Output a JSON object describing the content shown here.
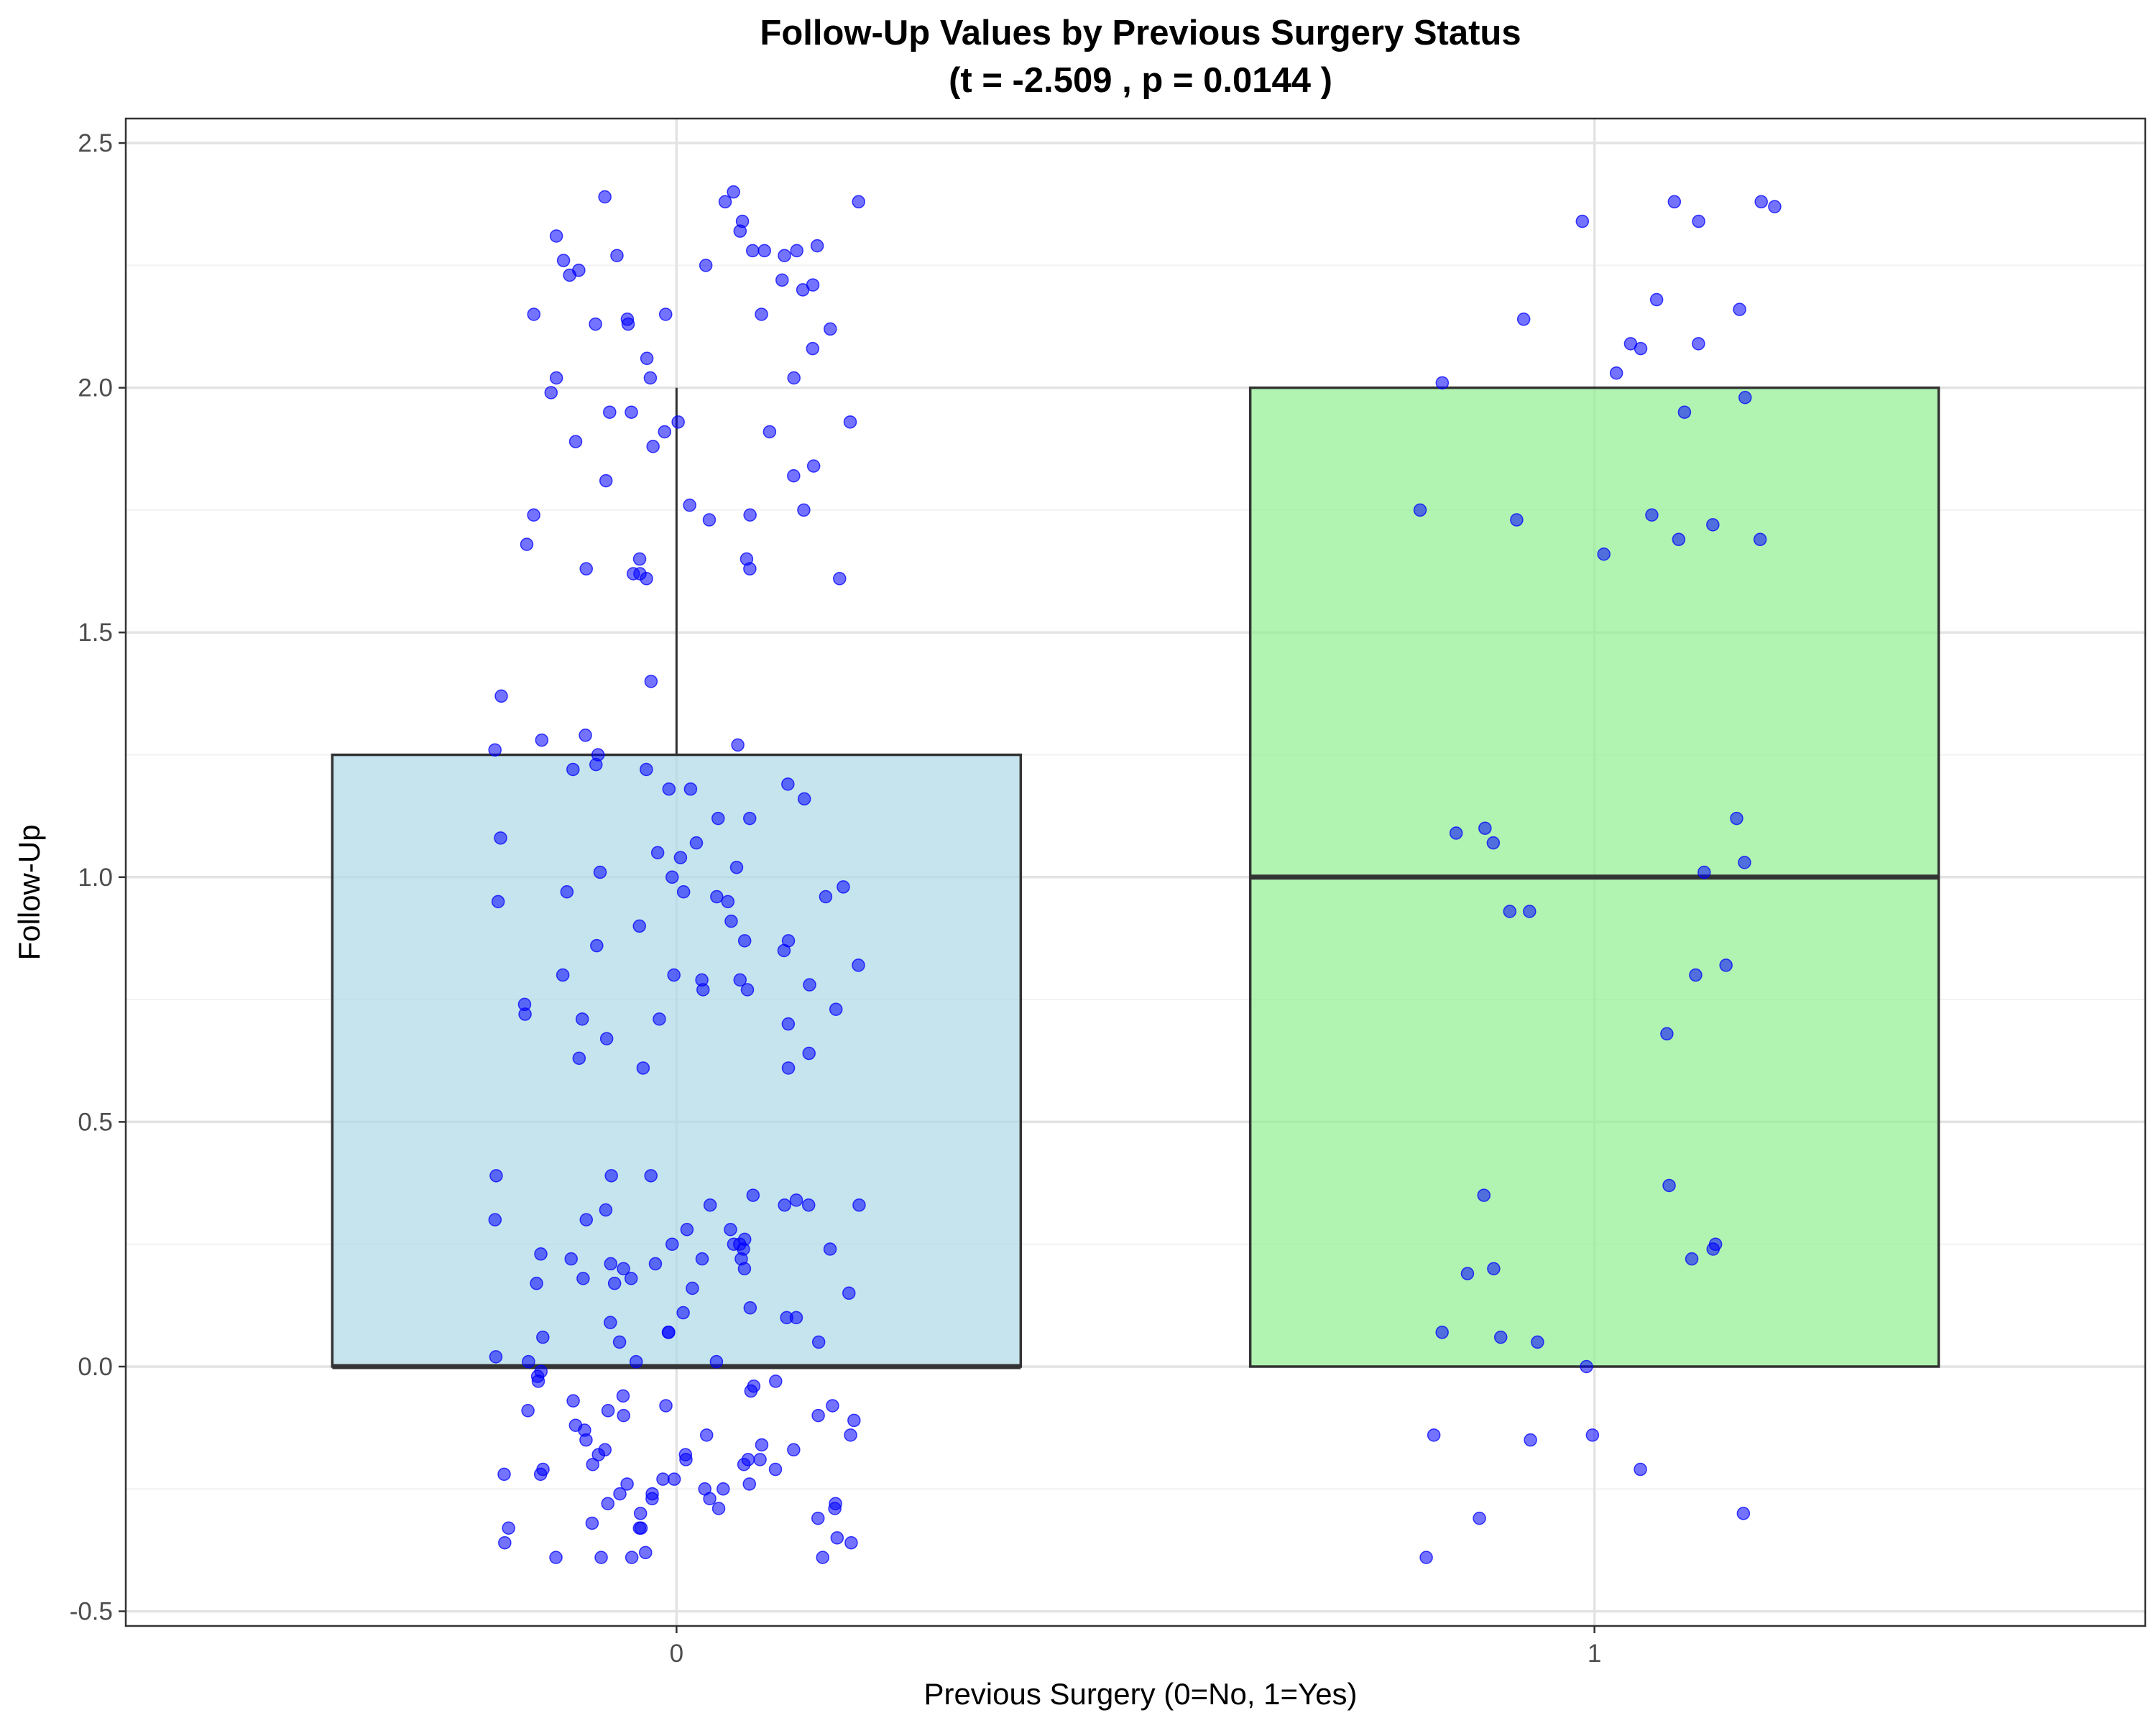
{
  "chart_data": {
    "type": "boxplot",
    "title": "Follow-Up Values by Previous Surgery Status",
    "subtitle": "(t = -2.509 , p = 0.0144 )",
    "xlabel": "Previous Surgery (0=No, 1=Yes)",
    "ylabel": "Follow-Up",
    "categories": [
      "0",
      "1"
    ],
    "ylim": [
      -0.53,
      2.55
    ],
    "yticks": [
      "-0.5",
      "0.0",
      "0.5",
      "1.0",
      "1.5",
      "2.0",
      "2.5"
    ],
    "grid": true,
    "boxes": [
      {
        "category": "0",
        "min": 0,
        "q1": 0,
        "median": 0,
        "q3": 1.25,
        "max": 2,
        "fill": "#add8e6"
      },
      {
        "category": "1",
        "min": 0,
        "q1": 0,
        "median": 1,
        "q3": 2,
        "max": 2,
        "fill": "#90ee90"
      }
    ],
    "point_color": "#0000ff",
    "points": [
      {
        "category": "0",
        "values": [
          2.4,
          2.39,
          2.38,
          2.38,
          2.34,
          2.32,
          2.31,
          2.29,
          2.28,
          2.28,
          2.28,
          2.27,
          2.27,
          2.26,
          2.25,
          2.24,
          2.23,
          2.22,
          2.21,
          2.2,
          2.15,
          2.15,
          2.15,
          2.14,
          2.13,
          2.13,
          2.12,
          2.08,
          2.06,
          2.02,
          2.02,
          2.02,
          1.99,
          1.95,
          1.95,
          1.93,
          1.93,
          1.91,
          1.91,
          1.89,
          1.88,
          1.84,
          1.82,
          1.81,
          1.76,
          1.75,
          1.74,
          1.74,
          1.73,
          1.68,
          1.65,
          1.65,
          1.63,
          1.63,
          1.62,
          1.62,
          1.61,
          1.61,
          1.4,
          1.37,
          1.29,
          1.28,
          1.27,
          1.26,
          1.25,
          1.23,
          1.22,
          1.22,
          1.19,
          1.18,
          1.18,
          1.16,
          1.12,
          1.12,
          1.08,
          1.07,
          1.05,
          1.04,
          1.02,
          1.01,
          1.0,
          0.98,
          0.97,
          0.97,
          0.96,
          0.96,
          0.95,
          0.95,
          0.91,
          0.9,
          0.87,
          0.87,
          0.86,
          0.85,
          0.82,
          0.8,
          0.8,
          0.79,
          0.79,
          0.78,
          0.77,
          0.77,
          0.74,
          0.73,
          0.72,
          0.71,
          0.71,
          0.7,
          0.67,
          0.64,
          0.63,
          0.61,
          0.61,
          0.39,
          0.39,
          0.39,
          0.35,
          0.34,
          0.33,
          0.33,
          0.33,
          0.33,
          0.32,
          0.3,
          0.3,
          0.28,
          0.28,
          0.26,
          0.25,
          0.25,
          0.25,
          0.24,
          0.24,
          0.23,
          0.22,
          0.22,
          0.22,
          0.21,
          0.21,
          0.2,
          0.2,
          0.18,
          0.18,
          0.17,
          0.17,
          0.16,
          0.15,
          0.12,
          0.11,
          0.1,
          0.1,
          0.09,
          0.07,
          0.07,
          0.06,
          0.05,
          0.05,
          0.02,
          0.01,
          0.01,
          0.01,
          -0.01,
          -0.02,
          -0.03,
          -0.03,
          -0.04,
          -0.05,
          -0.06,
          -0.07,
          -0.08,
          -0.08,
          -0.09,
          -0.09,
          -0.1,
          -0.1,
          -0.11,
          -0.12,
          -0.13,
          -0.14,
          -0.14,
          -0.15,
          -0.16,
          -0.17,
          -0.17,
          -0.18,
          -0.18,
          -0.19,
          -0.19,
          -0.19,
          -0.2,
          -0.2,
          -0.21,
          -0.21,
          -0.22,
          -0.22,
          -0.23,
          -0.23,
          -0.24,
          -0.24,
          -0.25,
          -0.25,
          -0.26,
          -0.26,
          -0.27,
          -0.27,
          -0.28,
          -0.28,
          -0.29,
          -0.29,
          -0.3,
          -0.31,
          -0.32,
          -0.33,
          -0.33,
          -0.33,
          -0.35,
          -0.36,
          -0.36,
          -0.38,
          -0.39,
          -0.39,
          -0.39,
          -0.39
        ]
      },
      {
        "category": "1",
        "values": [
          2.38,
          2.38,
          2.37,
          2.34,
          2.34,
          2.18,
          2.16,
          2.14,
          2.09,
          2.09,
          2.08,
          2.03,
          2.01,
          1.98,
          1.95,
          1.75,
          1.74,
          1.73,
          1.72,
          1.69,
          1.69,
          1.66,
          1.12,
          1.1,
          1.09,
          1.07,
          1.03,
          1.01,
          0.93,
          0.93,
          0.82,
          0.8,
          0.68,
          0.37,
          0.35,
          0.25,
          0.24,
          0.22,
          0.2,
          0.19,
          0.07,
          0.06,
          0.05,
          0.0,
          -0.14,
          -0.14,
          -0.15,
          -0.21,
          -0.3,
          -0.31,
          -0.39
        ]
      }
    ]
  }
}
